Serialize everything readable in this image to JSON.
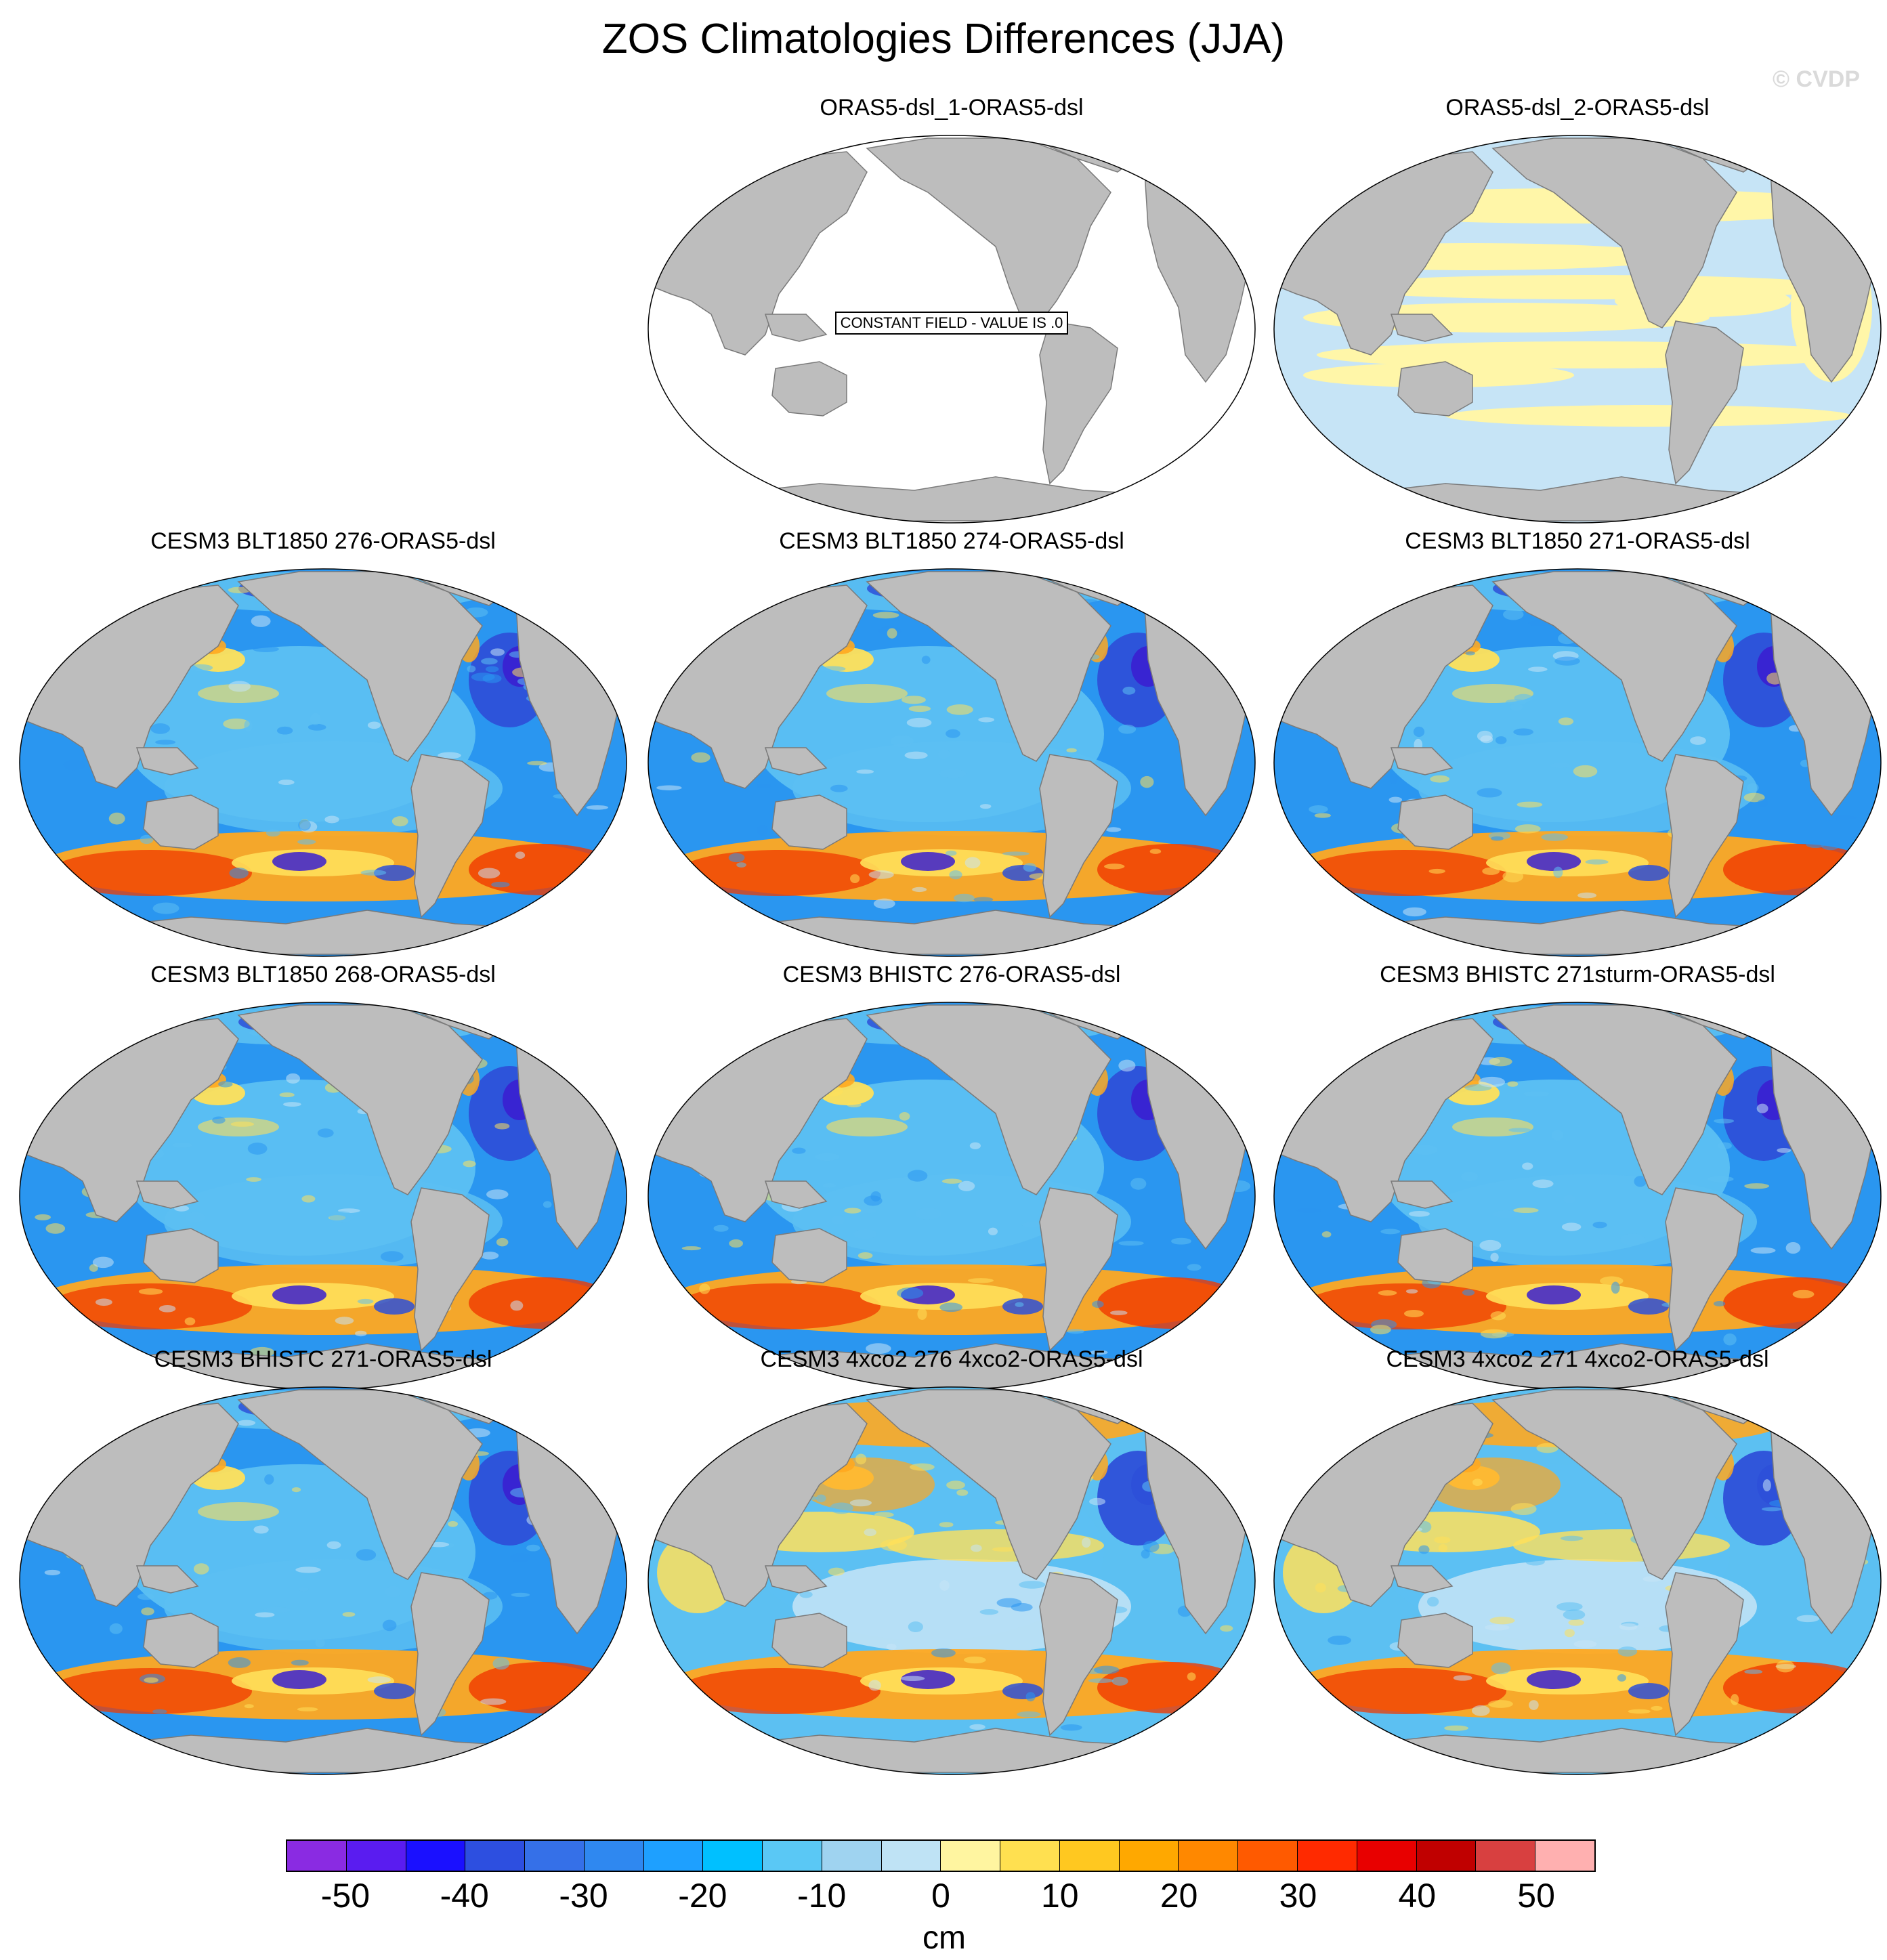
{
  "title": "ZOS Climatologies Differences (JJA)",
  "watermark": "© CVDP",
  "constant_field_note": "CONSTANT FIELD - VALUE IS .0",
  "panels": [
    {
      "title": "ORAS5-dsl_1-ORAS5-dsl",
      "pattern": "constant"
    },
    {
      "title": "ORAS5-dsl_2-ORAS5-dsl",
      "pattern": "near-zero"
    },
    {
      "title": "CESM3 BLT1850 276-ORAS5-dsl",
      "pattern": "model"
    },
    {
      "title": "CESM3 BLT1850 274-ORAS5-dsl",
      "pattern": "model"
    },
    {
      "title": "CESM3 BLT1850 271-ORAS5-dsl",
      "pattern": "model"
    },
    {
      "title": "CESM3 BLT1850 268-ORAS5-dsl",
      "pattern": "model"
    },
    {
      "title": "CESM3 BHISTC 276-ORAS5-dsl",
      "pattern": "model"
    },
    {
      "title": "CESM3 BHISTC 271sturm-ORAS5-dsl",
      "pattern": "model"
    },
    {
      "title": "CESM3 BHISTC 271-ORAS5-dsl",
      "pattern": "model"
    },
    {
      "title": "CESM3 4xco2 276 4xco2-ORAS5-dsl",
      "pattern": "warm"
    },
    {
      "title": "CESM3 4xco2 271 4xco2-ORAS5-dsl",
      "pattern": "warm"
    }
  ],
  "colorbar": {
    "unit": "cm",
    "tick_labels": [
      "-50",
      "-40",
      "-30",
      "-20",
      "-10",
      "0",
      "10",
      "20",
      "30",
      "40",
      "50"
    ],
    "colors": [
      "#8a2be2",
      "#5a1cf0",
      "#1a10ff",
      "#2d4fe0",
      "#3570e8",
      "#2f88f0",
      "#1ea0ff",
      "#00c0ff",
      "#5ac8f5",
      "#9fd3f0",
      "#bfe3f5",
      "#fff5a0",
      "#ffe050",
      "#ffc820",
      "#ffa800",
      "#ff8800",
      "#ff5a00",
      "#ff2a00",
      "#e80000",
      "#c00000",
      "#d84040",
      "#ffb0b0"
    ]
  },
  "palette": {
    "land": "#bdbdbd",
    "near_zero_pos": "#fff6a8",
    "near_zero_neg": "#c6e4f6",
    "light_blue": "#5cc0f2",
    "mid_blue": "#2a96f0",
    "dark_blue": "#2d50d8",
    "deep_blue": "#3a1fd0",
    "yellow": "#ffe05a",
    "orange": "#ffa820",
    "red": "#f03a00"
  }
}
